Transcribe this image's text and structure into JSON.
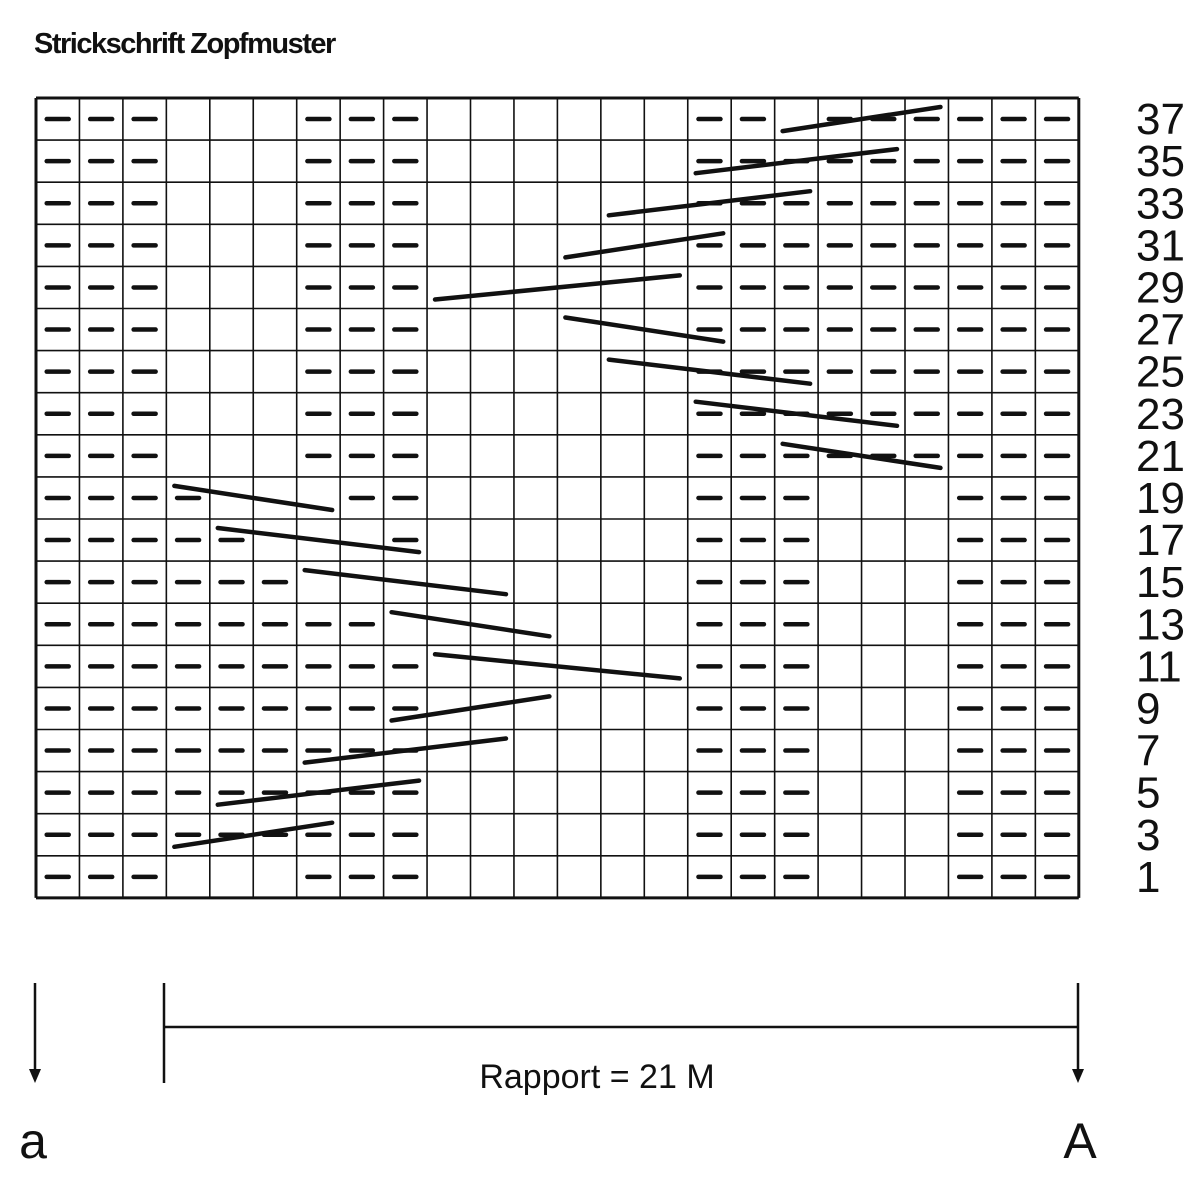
{
  "title": "Strickschrift Zopfmuster",
  "grid": {
    "columns": 24,
    "rows": 19,
    "row_labels": [
      "37",
      "35",
      "33",
      "31",
      "29",
      "27",
      "25",
      "23",
      "21",
      "19",
      "17",
      "15",
      "13",
      "11",
      "9",
      "7",
      "5",
      "3",
      "1"
    ],
    "purl_cells": [
      [
        0,
        1,
        2,
        6,
        7,
        8,
        15,
        16,
        18,
        19,
        20,
        21,
        22,
        23
      ],
      [
        0,
        1,
        2,
        6,
        7,
        8,
        15,
        16,
        17,
        18,
        19,
        20,
        21,
        22,
        23
      ],
      [
        0,
        1,
        2,
        6,
        7,
        8,
        15,
        16,
        17,
        18,
        19,
        20,
        21,
        22,
        23
      ],
      [
        0,
        1,
        2,
        6,
        7,
        8,
        15,
        16,
        17,
        18,
        19,
        20,
        21,
        22,
        23
      ],
      [
        0,
        1,
        2,
        6,
        7,
        8,
        15,
        16,
        17,
        18,
        19,
        20,
        21,
        22,
        23
      ],
      [
        0,
        1,
        2,
        6,
        7,
        8,
        15,
        16,
        17,
        18,
        19,
        20,
        21,
        22,
        23
      ],
      [
        0,
        1,
        2,
        6,
        7,
        8,
        15,
        16,
        17,
        18,
        19,
        20,
        21,
        22,
        23
      ],
      [
        0,
        1,
        2,
        6,
        7,
        8,
        15,
        16,
        17,
        18,
        19,
        20,
        21,
        22,
        23
      ],
      [
        0,
        1,
        2,
        6,
        7,
        8,
        15,
        16,
        17,
        18,
        19,
        20,
        21,
        22,
        23
      ],
      [
        0,
        1,
        2,
        3,
        7,
        8,
        15,
        16,
        17,
        21,
        22,
        23
      ],
      [
        0,
        1,
        2,
        3,
        4,
        8,
        15,
        16,
        17,
        21,
        22,
        23
      ],
      [
        0,
        1,
        2,
        3,
        4,
        5,
        15,
        16,
        17,
        21,
        22,
        23
      ],
      [
        0,
        1,
        2,
        3,
        4,
        5,
        6,
        7,
        15,
        16,
        17,
        21,
        22,
        23
      ],
      [
        0,
        1,
        2,
        3,
        4,
        5,
        6,
        7,
        8,
        15,
        16,
        17,
        21,
        22,
        23
      ],
      [
        0,
        1,
        2,
        3,
        4,
        5,
        6,
        7,
        8,
        15,
        16,
        17,
        21,
        22,
        23
      ],
      [
        0,
        1,
        2,
        3,
        4,
        5,
        6,
        7,
        8,
        15,
        16,
        17,
        21,
        22,
        23
      ],
      [
        0,
        1,
        2,
        3,
        4,
        5,
        6,
        7,
        8,
        15,
        16,
        17,
        21,
        22,
        23
      ],
      [
        0,
        1,
        2,
        3,
        4,
        5,
        6,
        7,
        8,
        15,
        16,
        17,
        21,
        22,
        23
      ],
      [
        0,
        1,
        2,
        6,
        7,
        8,
        15,
        16,
        17,
        21,
        22,
        23
      ]
    ],
    "cable_crossings": [
      {
        "row": 37,
        "from_col": 17,
        "to_col": 20,
        "direction": "up"
      },
      {
        "row": 35,
        "from_col": 15,
        "to_col": 19,
        "direction": "up"
      },
      {
        "row": 33,
        "from_col": 13,
        "to_col": 17,
        "direction": "up"
      },
      {
        "row": 31,
        "from_col": 12,
        "to_col": 15,
        "direction": "up"
      },
      {
        "row": 29,
        "from_col": 9,
        "to_col": 14,
        "direction": "up"
      },
      {
        "row": 27,
        "from_col": 12,
        "to_col": 15,
        "direction": "down"
      },
      {
        "row": 25,
        "from_col": 13,
        "to_col": 17,
        "direction": "down"
      },
      {
        "row": 23,
        "from_col": 15,
        "to_col": 19,
        "direction": "down"
      },
      {
        "row": 21,
        "from_col": 17,
        "to_col": 20,
        "direction": "down"
      },
      {
        "row": 19,
        "from_col": 3,
        "to_col": 6,
        "direction": "down"
      },
      {
        "row": 17,
        "from_col": 4,
        "to_col": 8,
        "direction": "down"
      },
      {
        "row": 15,
        "from_col": 6,
        "to_col": 10,
        "direction": "down"
      },
      {
        "row": 13,
        "from_col": 8,
        "to_col": 11,
        "direction": "down"
      },
      {
        "row": 11,
        "from_col": 9,
        "to_col": 14,
        "direction": "down"
      },
      {
        "row": 9,
        "from_col": 8,
        "to_col": 11,
        "direction": "up"
      },
      {
        "row": 7,
        "from_col": 6,
        "to_col": 10,
        "direction": "up"
      },
      {
        "row": 5,
        "from_col": 4,
        "to_col": 8,
        "direction": "up"
      },
      {
        "row": 3,
        "from_col": 3,
        "to_col": 6,
        "direction": "up"
      }
    ]
  },
  "rapport_label": "Rapport = 21 M",
  "marker_left": "a",
  "marker_right": "A",
  "colors": {
    "ink": "#111111",
    "background": "#ffffff"
  }
}
